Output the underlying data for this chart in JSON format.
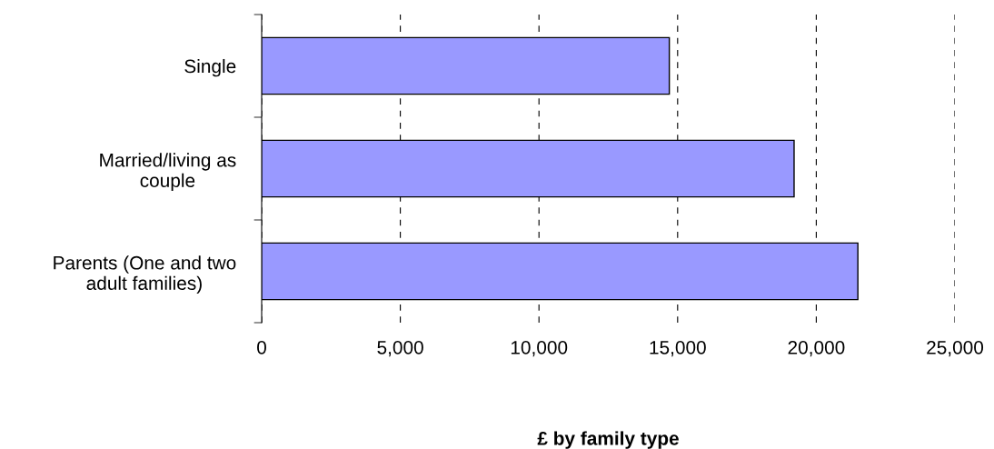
{
  "chart_data": {
    "type": "bar",
    "orientation": "horizontal",
    "xlabel": "£ by family type",
    "categories": [
      "Single",
      "Married/living as\ncouple",
      "Parents (One and two\nadult families)"
    ],
    "values": [
      14700,
      19200,
      21500
    ],
    "color": "#9999ff",
    "xlim": [
      0,
      25000
    ],
    "xticks": [
      {
        "value": 0,
        "label": "0"
      },
      {
        "value": 5000,
        "label": "5,000"
      },
      {
        "value": 10000,
        "label": "10,000"
      },
      {
        "value": 15000,
        "label": "15,000"
      },
      {
        "value": 20000,
        "label": "20,000"
      },
      {
        "value": 25000,
        "label": "25,000"
      }
    ],
    "grid": "x",
    "legend": false
  }
}
